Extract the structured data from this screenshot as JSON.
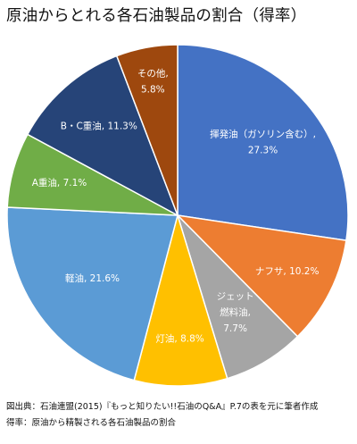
{
  "chart_data": {
    "type": "pie",
    "title": "原油からとれる各石油製品の割合（得率）",
    "start_angle_deg": 0,
    "direction": "clockwise",
    "slices": [
      {
        "name": "揮発油（ガソリン含む）",
        "value": 27.3,
        "label_lines": [
          "揮発油（ガソリン含む）,",
          "27.3%"
        ],
        "color": "#4472C4"
      },
      {
        "name": "ナフサ",
        "value": 10.2,
        "label_lines": [
          "ナフサ, 10.2%"
        ],
        "color": "#ED7D31"
      },
      {
        "name": "ジェット燃料油",
        "value": 7.7,
        "label_lines": [
          "ジェット",
          "燃料油,",
          "7.7%"
        ],
        "color": "#A5A5A5"
      },
      {
        "name": "灯油",
        "value": 8.8,
        "label_lines": [
          "灯油, 8.8%"
        ],
        "color": "#FFC000"
      },
      {
        "name": "軽油",
        "value": 21.6,
        "label_lines": [
          "軽油, 21.6%"
        ],
        "color": "#5B9BD5"
      },
      {
        "name": "A重油",
        "value": 7.1,
        "label_lines": [
          "A重油, 7.1%"
        ],
        "color": "#70AD47"
      },
      {
        "name": "B・C重油",
        "value": 11.3,
        "label_lines": [
          "B・C重油, 11.3%"
        ],
        "color": "#264478"
      },
      {
        "name": "その他",
        "value": 5.8,
        "label_lines": [
          "その他,",
          "5.8%"
        ],
        "color": "#9E480E"
      }
    ]
  },
  "notes": {
    "source": "図出典：石油連盟(2015)『もっと知りたい!!石油のQ&A』P.7の表を元に筆者作成",
    "yield_definition": "得率：原油から精製される各石油製品の割合"
  }
}
